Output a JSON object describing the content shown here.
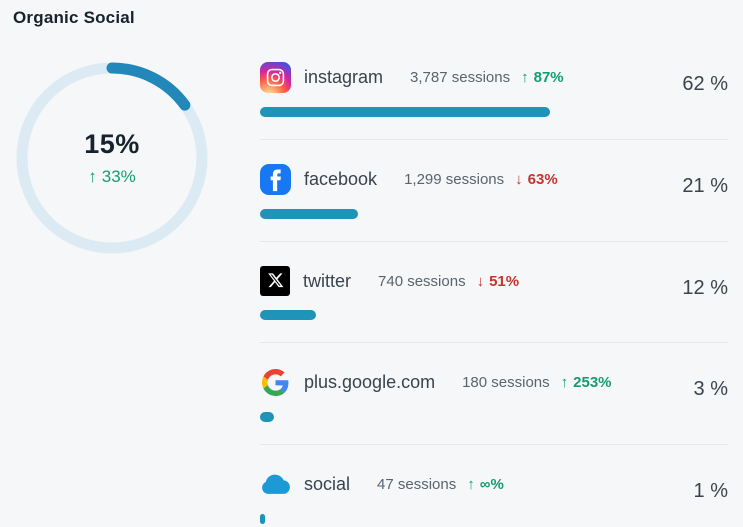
{
  "title": "Organic Social",
  "colors": {
    "background": "#f5f7f8",
    "title_text": "#16222e",
    "text_dark": "#3a434e",
    "text_gray": "#5a646e",
    "divider": "#e4e8ec",
    "donut_arc": "#2287b9",
    "donut_ring": "#dcebf3",
    "bar_blue": "#1f93b8",
    "green": "#149e6d",
    "red": "#c63430",
    "facebook_blue": "#1877f2",
    "x_black": "#000000",
    "cloud_blue": "#1d9ad6"
  },
  "donut": {
    "share_pct": 15,
    "share_label": "15%",
    "change_direction": "up",
    "change_label": "33%"
  },
  "rows": [
    {
      "icon": "instagram-icon",
      "name": "instagram",
      "sessions": "3,787 sessions",
      "direction": "up",
      "change": "87%",
      "share": "62 %",
      "share_pct": 62
    },
    {
      "icon": "facebook-icon",
      "name": "facebook",
      "sessions": "1,299 sessions",
      "direction": "down",
      "change": "63%",
      "share": "21 %",
      "share_pct": 21
    },
    {
      "icon": "x-twitter-icon",
      "name": "twitter",
      "sessions": "740 sessions",
      "direction": "down",
      "change": "51%",
      "share": "12 %",
      "share_pct": 12
    },
    {
      "icon": "google-icon",
      "name": "plus.google.com",
      "sessions": "180 sessions",
      "direction": "up",
      "change": "253%",
      "share": "3 %",
      "share_pct": 3
    },
    {
      "icon": "cloud-social-icon",
      "name": "social",
      "sessions": "47 sessions",
      "direction": "up",
      "change": "∞%",
      "share": "1 %",
      "share_pct": 1
    }
  ],
  "chart_data": [
    {
      "type": "pie",
      "title": "Organic Social",
      "labels": [
        "organic social share",
        "remainder"
      ],
      "values": [
        15,
        85
      ],
      "center_label": "15%",
      "center_change": "↑ 33%",
      "colors": [
        "#2287b9",
        "#dcebf3"
      ],
      "donut": true
    },
    {
      "type": "bar",
      "orientation": "horizontal",
      "categories": [
        "instagram",
        "facebook",
        "twitter",
        "plus.google.com",
        "social"
      ],
      "series": [
        {
          "name": "share %",
          "values": [
            62,
            21,
            12,
            3,
            1
          ]
        },
        {
          "name": "sessions",
          "values": [
            3787,
            1299,
            740,
            180,
            47
          ]
        },
        {
          "name": "change %",
          "values": [
            87,
            -63,
            -51,
            253,
            "∞"
          ]
        }
      ],
      "bar_color": "#1f93b8",
      "xlim": [
        0,
        100
      ]
    }
  ]
}
